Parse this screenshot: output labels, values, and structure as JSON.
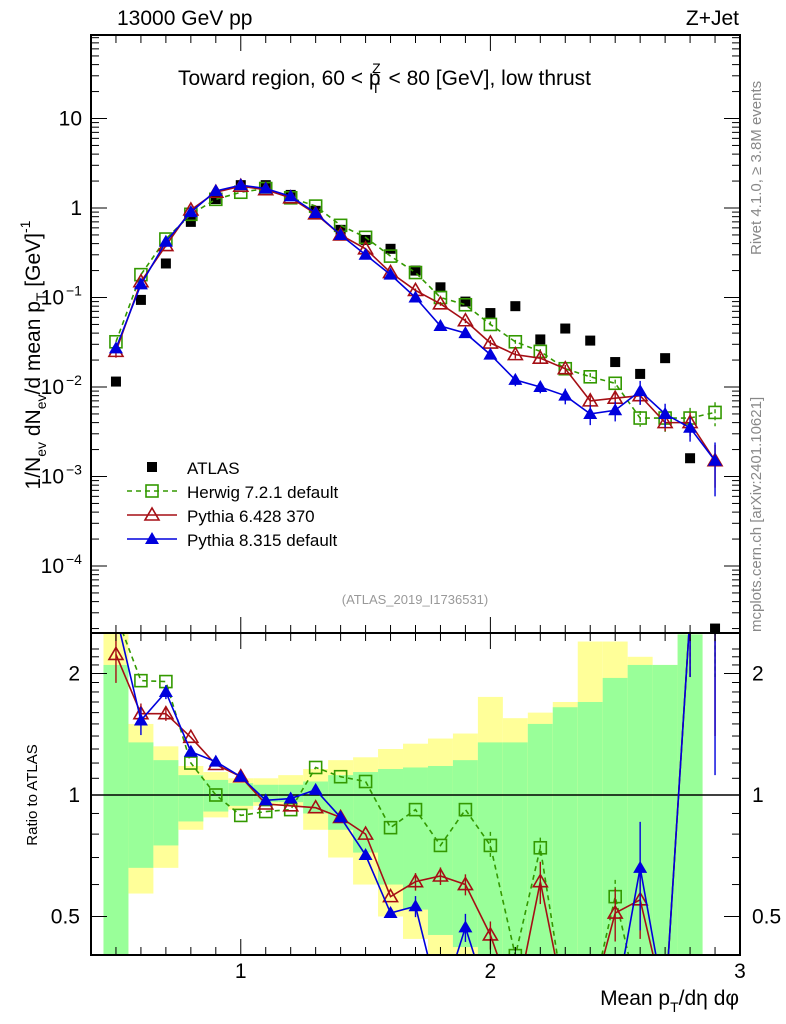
{
  "chart_data": {
    "type": "line",
    "header_left": "13000 GeV pp",
    "header_right": "Z+Jet",
    "title": "Toward region, 60 < p",
    "title_sup": "Z",
    "title_sub": "T",
    "title_tail": " < 80 [GeV], low thrust",
    "ylabel": "1/N_ev dN_ev/d mean p_T [GeV]^-1",
    "ylabel_parts": {
      "a": "1/N",
      "a_sub": "ev",
      "b": " dN",
      "b_sub": "ev",
      "c": "/d mean p",
      "c_sub": "T",
      "d": " [GeV]",
      "d_sup": "-1"
    },
    "xlabel": "Mean p_T/dη dφ",
    "xlabel_parts": {
      "a": "Mean p",
      "a_sub": "T",
      "b": "/dη dφ"
    },
    "ratio_ylabel": "Ratio to ATLAS",
    "side_label_top": "Rivet 4.1.0, ≥ 3.8M events",
    "side_label_bottom": "mcplots.cern.ch [arXiv:2401.10621]",
    "analysis_id": "(ATLAS_2019_I1736531)",
    "xlim": [
      0.4,
      3.0
    ],
    "ylim": [
      2e-05,
      60
    ],
    "ylog": true,
    "ratio_ylim": [
      0.35,
      2.4
    ],
    "ratio_ylog": true,
    "x_ticks": [
      {
        "v": 1,
        "label": "1"
      },
      {
        "v": 2,
        "label": "2"
      },
      {
        "v": 3,
        "label": "3"
      }
    ],
    "y_ticks": [
      {
        "v": 10,
        "label": "10",
        "exp": ""
      },
      {
        "v": 1,
        "label": "1",
        "exp": ""
      },
      {
        "v": 0.1,
        "label": "10",
        "exp": "−1"
      },
      {
        "v": 0.01,
        "label": "10",
        "exp": "−2"
      },
      {
        "v": 0.001,
        "label": "10",
        "exp": "−3"
      },
      {
        "v": 0.0001,
        "label": "10",
        "exp": "−4"
      }
    ],
    "ratio_ticks": [
      {
        "v": 2,
        "label": "2"
      },
      {
        "v": 1,
        "label": "1"
      },
      {
        "v": 0.5,
        "label": "0.5"
      }
    ],
    "x": [
      0.5,
      0.6,
      0.7,
      0.8,
      0.9,
      1.0,
      1.1,
      1.2,
      1.3,
      1.4,
      1.5,
      1.6,
      1.7,
      1.8,
      1.9,
      2.0,
      2.1,
      2.2,
      2.3,
      2.4,
      2.5,
      2.6,
      2.7,
      2.8,
      2.9
    ],
    "legend": [
      {
        "name": "ATLAS",
        "key": "data"
      },
      {
        "name": "Herwig 7.2.1 default",
        "key": "herwig"
      },
      {
        "name": "Pythia 6.428 370",
        "key": "py6"
      },
      {
        "name": "Pythia 8.315 default",
        "key": "py8"
      }
    ],
    "legend_position": "lower-left",
    "series": [
      {
        "name": "ATLAS",
        "key": "data",
        "color": "#000000",
        "marker": "filled-square",
        "values": [
          0.0115,
          0.094,
          0.24,
          0.7,
          1.26,
          1.8,
          1.8,
          1.4,
          0.93,
          0.57,
          0.44,
          0.35,
          0.2,
          0.13,
          0.09,
          0.067,
          0.08,
          0.034,
          0.045,
          0.033,
          0.019,
          0.014,
          0.021,
          0.0016,
          2e-05
        ]
      },
      {
        "name": "Herwig 7.2.1 default",
        "key": "herwig",
        "color": "#339900",
        "marker": "open-square",
        "dashed": true,
        "values": [
          0.032,
          0.18,
          0.45,
          0.85,
          1.25,
          1.5,
          1.65,
          1.3,
          1.05,
          0.64,
          0.47,
          0.29,
          0.19,
          0.1,
          0.083,
          0.05,
          0.032,
          0.025,
          0.016,
          0.013,
          0.011,
          0.0045,
          0.0045,
          0.0045,
          0.0052
        ],
        "ratio": [
          2.8,
          1.92,
          1.91,
          1.2,
          1.0,
          0.89,
          0.91,
          0.92,
          1.17,
          1.11,
          1.08,
          0.83,
          0.92,
          0.75,
          0.92,
          0.75,
          0.4,
          0.74,
          0.3,
          0.3,
          0.56,
          0.3,
          0.3,
          2.8,
          2.8
        ],
        "errors": [
          0,
          0,
          0,
          0,
          0,
          0,
          0,
          0,
          0,
          0,
          0,
          0,
          0,
          0,
          0,
          0.08,
          0.05,
          0.06,
          0.1,
          0.1,
          0.1,
          0.2,
          0.3,
          0.3,
          0.3
        ]
      },
      {
        "name": "Pythia 6.428 370",
        "key": "py6",
        "color": "#a50f15",
        "marker": "open-triangle",
        "values": [
          0.025,
          0.15,
          0.38,
          0.95,
          1.5,
          1.75,
          1.6,
          1.3,
          0.86,
          0.5,
          0.35,
          0.19,
          0.12,
          0.085,
          0.055,
          0.031,
          0.023,
          0.021,
          0.016,
          0.007,
          0.0075,
          0.008,
          0.004,
          0.004,
          0.0015
        ],
        "ratio": [
          2.23,
          1.59,
          1.59,
          1.39,
          1.19,
          1.11,
          0.95,
          0.94,
          0.93,
          0.88,
          0.8,
          0.56,
          0.61,
          0.63,
          0.6,
          0.45,
          0.3,
          0.61,
          0.3,
          0.3,
          0.51,
          0.55,
          0.3,
          2.8,
          2.8
        ],
        "errors": [
          0.15,
          0.06,
          0.04,
          0,
          0,
          0,
          0,
          0,
          0,
          0,
          0,
          0,
          0.05,
          0.05,
          0.06,
          0.08,
          0.1,
          0.12,
          0.1,
          0.15,
          0.15,
          0.2,
          0.2,
          0.3,
          0.5
        ]
      },
      {
        "name": "Pythia 8.315 default",
        "key": "py8",
        "color": "#0000dd",
        "marker": "filled-triangle",
        "values": [
          0.027,
          0.14,
          0.42,
          0.9,
          1.55,
          1.8,
          1.65,
          1.35,
          0.88,
          0.5,
          0.3,
          0.18,
          0.1,
          0.048,
          0.04,
          0.023,
          0.012,
          0.01,
          0.008,
          0.005,
          0.0055,
          0.009,
          0.005,
          0.0035,
          0.0015
        ],
        "ratio": [
          2.8,
          1.53,
          1.8,
          1.28,
          1.21,
          1.11,
          0.97,
          0.98,
          1.03,
          0.88,
          0.71,
          0.51,
          0.53,
          0.3,
          0.47,
          0.3,
          0.3,
          0.3,
          0.3,
          0.3,
          0.3,
          0.66,
          0.3,
          2.8,
          2.8
        ],
        "errors": [
          0.1,
          0.08,
          0.04,
          0,
          0,
          0,
          0,
          0,
          0,
          0,
          0,
          0,
          0.06,
          0.08,
          0.08,
          0.1,
          0.15,
          0.15,
          0.2,
          0.25,
          0.25,
          0.3,
          0.3,
          0.3,
          0.6
        ]
      }
    ],
    "bands": {
      "edges": [
        0.45,
        0.55,
        0.65,
        0.75,
        0.85,
        0.95,
        1.05,
        1.15,
        1.25,
        1.35,
        1.45,
        1.55,
        1.65,
        1.75,
        1.85,
        1.95,
        2.05,
        2.15,
        2.25,
        2.35,
        2.45,
        2.55,
        2.65,
        2.75,
        2.85
      ],
      "stat_color": "#99ff99",
      "total_color": "#ffff99",
      "stat_up": [
        2.1,
        1.35,
        1.22,
        1.12,
        1.09,
        1.07,
        1.06,
        1.06,
        1.08,
        1.12,
        1.14,
        1.16,
        1.17,
        1.18,
        1.22,
        1.35,
        1.35,
        1.5,
        1.65,
        1.7,
        1.95,
        2.1,
        2.1,
        2.5
      ],
      "stat_down": [
        0.35,
        0.66,
        0.75,
        0.86,
        0.91,
        0.94,
        0.96,
        0.96,
        0.9,
        0.82,
        0.72,
        0.6,
        0.52,
        0.45,
        0.42,
        0.4,
        0.4,
        0.35,
        0.35,
        0.35,
        0.35,
        0.35,
        0.35,
        0.35
      ],
      "total_up": [
        2.6,
        1.5,
        1.32,
        1.18,
        1.14,
        1.1,
        1.1,
        1.12,
        1.16,
        1.22,
        1.24,
        1.3,
        1.34,
        1.38,
        1.42,
        1.75,
        1.55,
        1.6,
        1.7,
        2.4,
        2.4,
        2.2,
        2.1,
        2.5
      ],
      "total_down": [
        0.35,
        0.57,
        0.66,
        0.82,
        0.88,
        0.92,
        0.94,
        0.94,
        0.82,
        0.7,
        0.6,
        0.5,
        0.44,
        0.38,
        0.36,
        0.35,
        0.35,
        0.35,
        0.35,
        0.35,
        0.35,
        0.35,
        0.36,
        0.35
      ]
    }
  }
}
